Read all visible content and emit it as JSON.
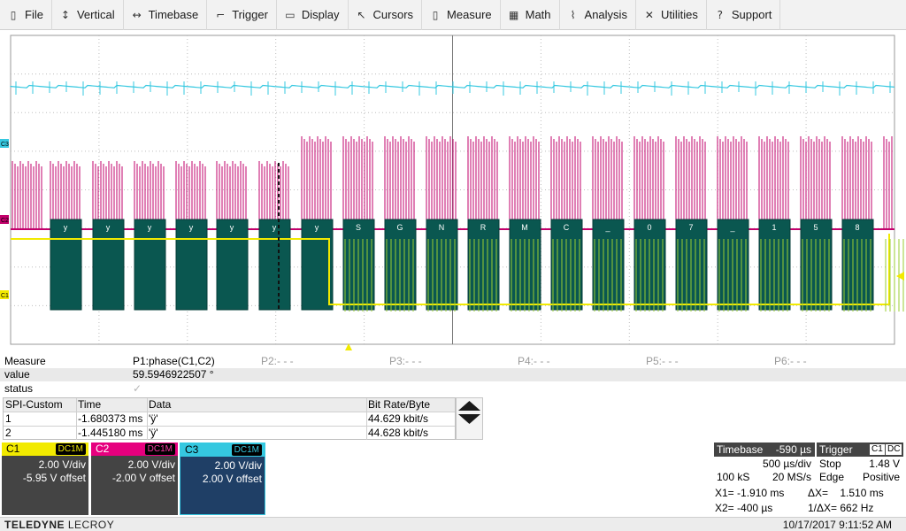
{
  "menu": [
    {
      "label": "File",
      "icon": "file-icon",
      "glyph": "▯"
    },
    {
      "label": "Vertical",
      "icon": "vertical-arrows-icon",
      "glyph": "↕"
    },
    {
      "label": "Timebase",
      "icon": "horizontal-arrows-icon",
      "glyph": "↔"
    },
    {
      "label": "Trigger",
      "icon": "trigger-edge-icon",
      "glyph": "⌐"
    },
    {
      "label": "Display",
      "icon": "display-icon",
      "glyph": "▭"
    },
    {
      "label": "Cursors",
      "icon": "cursor-arrow-icon",
      "glyph": "↖"
    },
    {
      "label": "Measure",
      "icon": "measure-icon",
      "glyph": "▯"
    },
    {
      "label": "Math",
      "icon": "calculator-icon",
      "glyph": "▦"
    },
    {
      "label": "Analysis",
      "icon": "analysis-chart-icon",
      "glyph": "⌇"
    },
    {
      "label": "Utilities",
      "icon": "tools-icon",
      "glyph": "✕"
    },
    {
      "label": "Support",
      "icon": "help-icon",
      "glyph": "?"
    }
  ],
  "grid": {
    "trace_colors": {
      "c1": "#f2ea00",
      "c2": "#c2006b",
      "c3": "#35c8e0",
      "decode": "#0a5750"
    },
    "channel_markers": {
      "c1": "C1",
      "c2": "C2",
      "c3": "C3"
    },
    "decode_labels": [
      "y",
      "y",
      "y",
      "y",
      "y",
      "y",
      "y",
      "S",
      "G",
      "N",
      "R",
      "M",
      "C",
      "_",
      "0",
      "7",
      "_",
      "1",
      "5",
      "8"
    ]
  },
  "measure": {
    "row_labels": {
      "measure": "Measure",
      "value": "value",
      "status": "status"
    },
    "p1": {
      "name": "P1:phase(C1,C2)",
      "value": "59.5946922507 °",
      "status": "✓"
    },
    "others": [
      "P2:- - -",
      "P3:- - -",
      "P4:- - -",
      "P5:- - -",
      "P6:- - -"
    ]
  },
  "decode": {
    "headers": [
      "SPI-Custom",
      "Time",
      "Data",
      "Bit Rate/Byte"
    ],
    "rows": [
      {
        "index": "1",
        "time": "-1.680373 ms",
        "data": "'ÿ'",
        "rate": "44.629 kbit/s"
      },
      {
        "index": "2",
        "time": "-1.445180 ms",
        "data": "'ÿ'",
        "rate": "44.628 kbit/s"
      }
    ]
  },
  "channels": [
    {
      "name": "C1",
      "coupling": "DC1M",
      "vdiv": "2.00 V/div",
      "offset": "-5.95 V offset"
    },
    {
      "name": "C2",
      "coupling": "DC1M",
      "vdiv": "2.00 V/div",
      "offset": "-2.00 V offset"
    },
    {
      "name": "C3",
      "coupling": "DC1M",
      "vdiv": "2.00 V/div",
      "offset": "2.00 V offset"
    }
  ],
  "timebase": {
    "title": "Timebase",
    "delay": "-590 µs",
    "per_div": "500 µs/div",
    "samples": "100 kS",
    "rate": "20 MS/s"
  },
  "trigger": {
    "title": "Trigger",
    "source": "C1",
    "coupling": "DC",
    "mode": "Stop",
    "level": "1.48 V",
    "type": "Edge",
    "slope": "Positive"
  },
  "cursors": {
    "x1": "X1= -1.910 ms",
    "dx": "ΔX=    1.510 ms",
    "x2": "X2= -400 µs",
    "inv_dx": "1/ΔX= 662 Hz"
  },
  "status": {
    "brand_bold": "TELEDYNE",
    "brand_light": "LECROY",
    "datetime": "10/17/2017 9:11:52 AM"
  }
}
